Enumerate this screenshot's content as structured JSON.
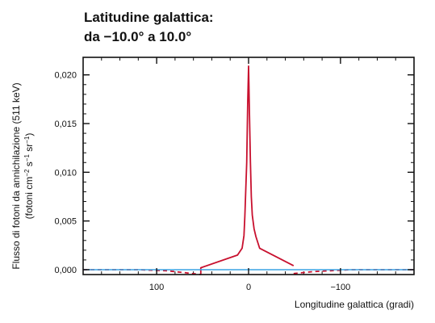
{
  "chart_data": {
    "type": "line",
    "title_line1": "Latitudine galattica:",
    "title_line2": "da −10.0° a 10.0°",
    "xlabel": "Longitudine galattica (gradi)",
    "ylabel_line1": "Flusso di fotoni da annichilazione (511 keV)",
    "ylabel_line2": {
      "prefix": "(fotoni cm",
      "exp1": "−2",
      "mid1": " s",
      "exp2": "−1",
      "mid2": " sr",
      "exp3": "−1",
      "suffix": ")"
    },
    "xlim": [
      180,
      -180
    ],
    "ylim": [
      -0.0005,
      0.0218
    ],
    "x_ticks": [
      {
        "value": 100,
        "label": "100"
      },
      {
        "value": 0,
        "label": "0"
      },
      {
        "value": -100,
        "label": "−100"
      }
    ],
    "y_ticks": [
      {
        "value": 0.0,
        "label": "0,000"
      },
      {
        "value": 0.005,
        "label": "0,005"
      },
      {
        "value": 0.01,
        "label": "0,010"
      },
      {
        "value": 0.015,
        "label": "0,015"
      },
      {
        "value": 0.02,
        "label": "0,020"
      }
    ],
    "colors": {
      "signal": "#c8102e",
      "baseline": "#3aa3e3",
      "axes": "#111111"
    },
    "series": [
      {
        "style": "solid",
        "x": [
          52,
          52,
          12,
          7,
          5,
          4,
          2,
          1,
          0,
          -1,
          -2,
          -3,
          -4,
          -6,
          -8,
          -12,
          -49
        ],
        "y": [
          -0.0005,
          0.0002,
          0.0015,
          0.0022,
          0.0035,
          0.0055,
          0.011,
          0.017,
          0.0209,
          0.016,
          0.011,
          0.0075,
          0.0056,
          0.0042,
          0.0034,
          0.0022,
          0.0004
        ]
      },
      {
        "style": "dashed",
        "x": [
          180,
          120,
          90,
          70,
          52
        ],
        "y": [
          0.0,
          0.0,
          -0.0001,
          -0.0003,
          -0.0005
        ]
      },
      {
        "style": "dashed",
        "x": [
          -49,
          -70,
          -90,
          -110,
          -180
        ],
        "y": [
          -0.0004,
          -0.0002,
          -0.0001,
          0.0,
          0.0
        ]
      },
      {
        "style": "baseline",
        "x": [
          180,
          -180
        ],
        "y": [
          0.0,
          0.0
        ]
      }
    ]
  }
}
